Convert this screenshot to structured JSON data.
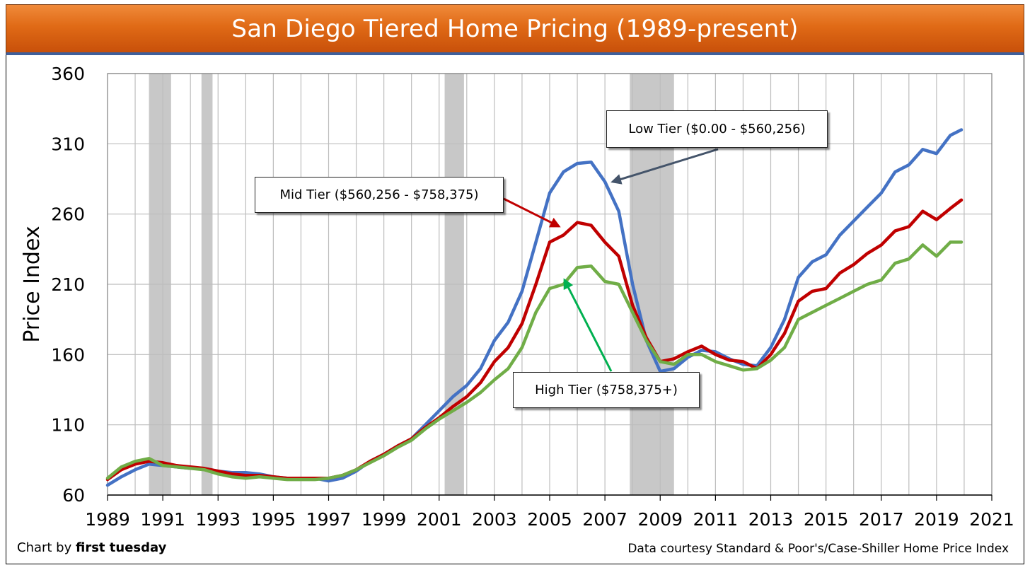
{
  "title": "San Diego Tiered Home Pricing (1989-present)",
  "credit_prefix": "Chart by ",
  "credit_brand": "first tuesday",
  "source": "Data courtesy Standard & Poor's/Case-Shiller Home Price Index",
  "annotations": {
    "low": "Low Tier ($0.00 - $560,256)",
    "mid": "Mid Tier ($560,256 - $758,375)",
    "high": "High Tier ($758,375+)"
  },
  "colors": {
    "low": "#4472c4",
    "mid": "#c00000",
    "high": "#70ad47",
    "recession": "#c8c8c8",
    "title_bg": "#e8731f"
  },
  "chart_data": {
    "type": "line",
    "title": "San Diego Tiered Home Pricing (1989-present)",
    "xlabel": "",
    "ylabel": "Price Index",
    "xlim": [
      1989,
      2021
    ],
    "ylim": [
      60,
      360
    ],
    "yticks": [
      60,
      110,
      160,
      210,
      260,
      310,
      360
    ],
    "xticks": [
      1989,
      1991,
      1993,
      1995,
      1997,
      1999,
      2001,
      2003,
      2005,
      2007,
      2009,
      2011,
      2013,
      2015,
      2017,
      2019,
      2021
    ],
    "grid": true,
    "recessions": [
      [
        1990.5,
        1991.3
      ],
      [
        1992.4,
        1992.8
      ],
      [
        2001.2,
        2001.9
      ],
      [
        2007.9,
        2009.5
      ]
    ],
    "series": [
      {
        "name": "Low Tier ($0.00 - $560,256)",
        "x": [
          1989,
          1989.5,
          1990,
          1990.5,
          1991,
          1991.5,
          1992,
          1992.5,
          1993,
          1993.5,
          1994,
          1994.5,
          1995,
          1995.5,
          1996,
          1996.5,
          1997,
          1997.5,
          1998,
          1998.5,
          1999,
          1999.5,
          2000,
          2000.5,
          2001,
          2001.5,
          2002,
          2002.5,
          2003,
          2003.5,
          2004,
          2004.5,
          2005,
          2005.5,
          2006,
          2006.5,
          2007,
          2007.5,
          2008,
          2008.5,
          2009,
          2009.5,
          2010,
          2010.5,
          2011,
          2011.5,
          2012,
          2012.5,
          2013,
          2013.5,
          2014,
          2014.5,
          2015,
          2015.5,
          2016,
          2016.5,
          2017,
          2017.5,
          2018,
          2018.5,
          2019,
          2019.5,
          2019.9
        ],
        "values": [
          67,
          73,
          78,
          82,
          81,
          80,
          79,
          79,
          77,
          76,
          76,
          75,
          73,
          72,
          72,
          72,
          70,
          72,
          77,
          84,
          89,
          95,
          100,
          110,
          120,
          130,
          138,
          150,
          170,
          183,
          205,
          240,
          275,
          290,
          296,
          297,
          283,
          262,
          210,
          170,
          148,
          150,
          158,
          163,
          162,
          157,
          153,
          152,
          165,
          185,
          215,
          226,
          231,
          245,
          255,
          265,
          275,
          290,
          295,
          306,
          303,
          316,
          320
        ]
      },
      {
        "name": "Mid Tier ($560,256 - $758,375)",
        "x": [
          1989,
          1989.5,
          1990,
          1990.5,
          1991,
          1991.5,
          1992,
          1992.5,
          1993,
          1993.5,
          1994,
          1994.5,
          1995,
          1995.5,
          1996,
          1996.5,
          1997,
          1997.5,
          1998,
          1998.5,
          1999,
          1999.5,
          2000,
          2000.5,
          2001,
          2001.5,
          2002,
          2002.5,
          2003,
          2003.5,
          2004,
          2004.5,
          2005,
          2005.5,
          2006,
          2006.5,
          2007,
          2007.5,
          2008,
          2008.5,
          2009,
          2009.5,
          2010,
          2010.5,
          2011,
          2011.5,
          2012,
          2012.5,
          2013,
          2013.5,
          2014,
          2014.5,
          2015,
          2015.5,
          2016,
          2016.5,
          2017,
          2017.5,
          2018,
          2018.5,
          2019,
          2019.5,
          2019.9
        ],
        "values": [
          71,
          78,
          82,
          84,
          83,
          81,
          80,
          79,
          77,
          75,
          74,
          74,
          73,
          72,
          72,
          72,
          72,
          74,
          78,
          84,
          89,
          95,
          100,
          108,
          115,
          123,
          130,
          140,
          155,
          165,
          182,
          210,
          240,
          245,
          254,
          252,
          240,
          230,
          195,
          172,
          155,
          157,
          162,
          166,
          160,
          156,
          155,
          150,
          160,
          175,
          198,
          205,
          207,
          218,
          224,
          232,
          238,
          248,
          251,
          262,
          256,
          264,
          270
        ]
      },
      {
        "name": "High Tier ($758,375+)",
        "x": [
          1989,
          1989.5,
          1990,
          1990.5,
          1991,
          1991.5,
          1992,
          1992.5,
          1993,
          1993.5,
          1994,
          1994.5,
          1995,
          1995.5,
          1996,
          1996.5,
          1997,
          1997.5,
          1998,
          1998.5,
          1999,
          1999.5,
          2000,
          2000.5,
          2001,
          2001.5,
          2002,
          2002.5,
          2003,
          2003.5,
          2004,
          2004.5,
          2005,
          2005.5,
          2006,
          2006.5,
          2007,
          2007.5,
          2008,
          2008.5,
          2009,
          2009.5,
          2010,
          2010.5,
          2011,
          2011.5,
          2012,
          2012.5,
          2013,
          2013.5,
          2014,
          2014.5,
          2015,
          2015.5,
          2016,
          2016.5,
          2017,
          2017.5,
          2018,
          2018.5,
          2019,
          2019.5,
          2019.9
        ],
        "values": [
          72,
          80,
          84,
          86,
          81,
          80,
          79,
          78,
          75,
          73,
          72,
          73,
          72,
          71,
          71,
          71,
          72,
          74,
          78,
          83,
          88,
          94,
          99,
          107,
          114,
          120,
          126,
          133,
          142,
          150,
          165,
          190,
          207,
          210,
          222,
          223,
          212,
          210,
          190,
          170,
          155,
          153,
          160,
          160,
          155,
          152,
          149,
          150,
          156,
          165,
          185,
          190,
          195,
          200,
          205,
          210,
          213,
          225,
          228,
          238,
          230,
          240,
          240
        ]
      }
    ]
  }
}
